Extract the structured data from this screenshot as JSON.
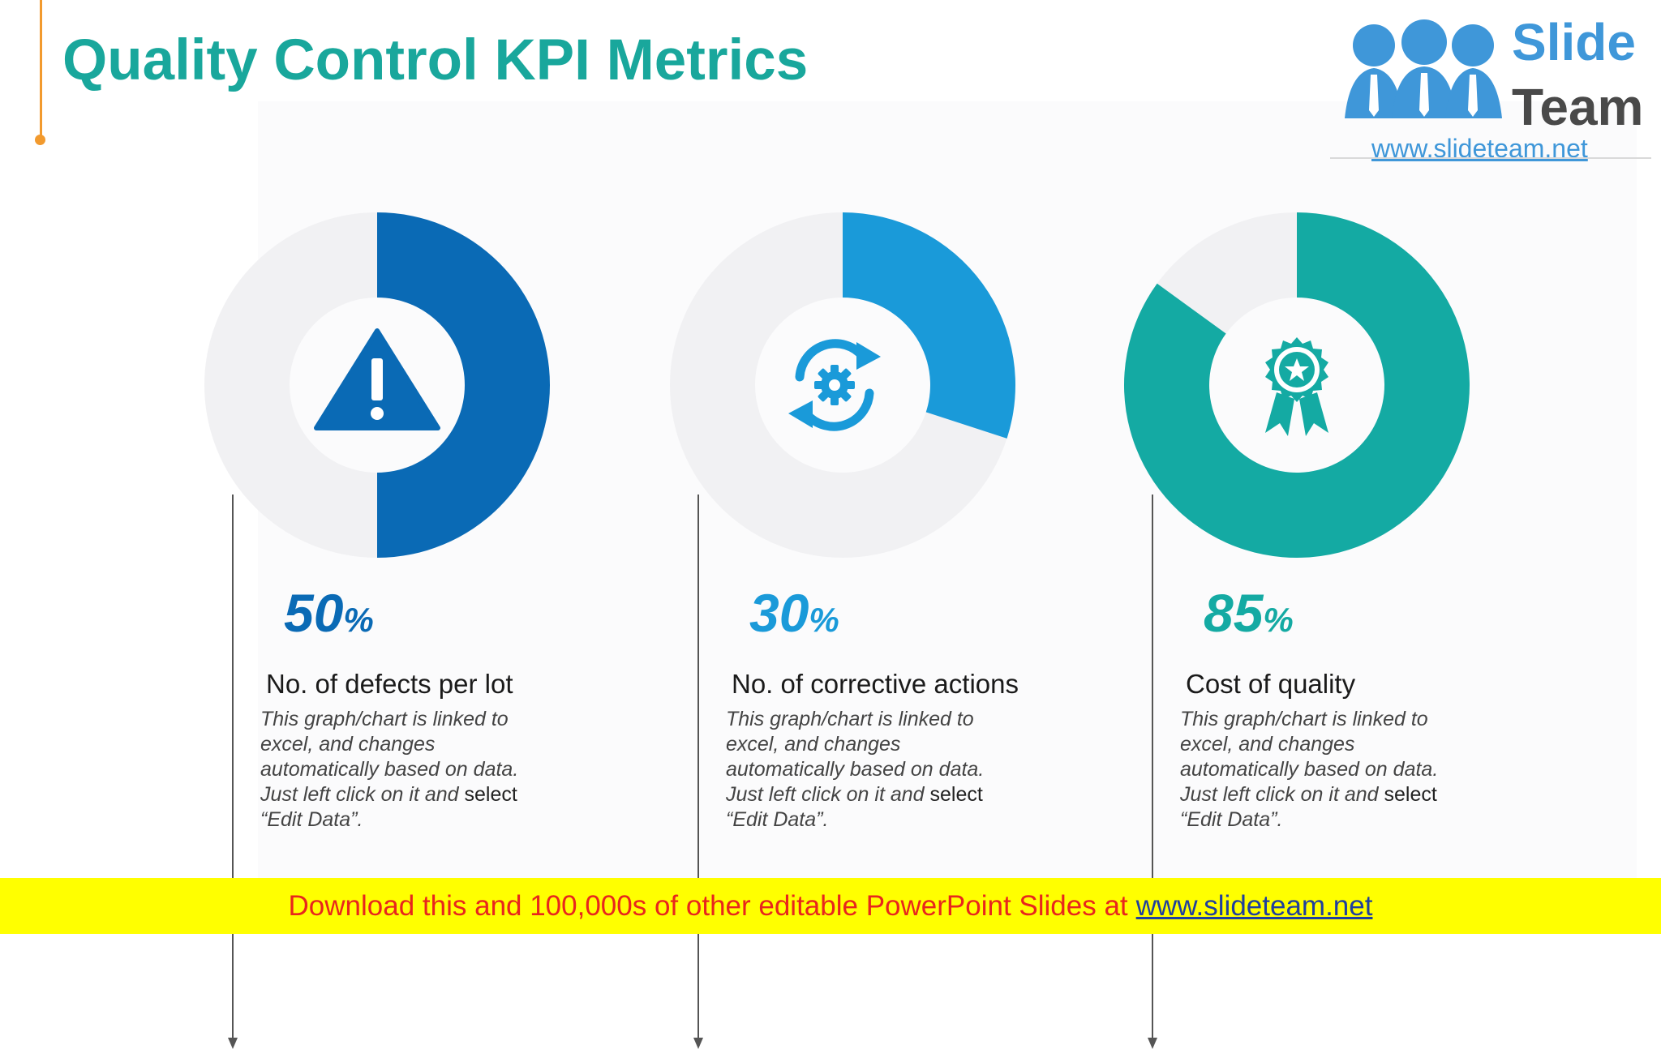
{
  "title": "Quality Control KPI Metrics",
  "logo": {
    "word1": "Slide",
    "word2": "Team",
    "url": "www.slideteam.net"
  },
  "colors": {
    "title": "#19a79c",
    "accent_line": "#f29a2e",
    "track": "#f1f1f3",
    "kpi1": "#0a6ab5",
    "kpi2": "#1a9ad9",
    "kpi3": "#14aaa3",
    "banner_bg": "#ffff00",
    "banner_text": "#e8261d"
  },
  "chart_data": [
    {
      "type": "pie",
      "variant": "donut",
      "values": [
        50,
        50
      ],
      "series": [
        {
          "values": [
            50
          ]
        }
      ],
      "color": "#0a6ab5",
      "icon": "warning-icon"
    },
    {
      "type": "pie",
      "variant": "donut",
      "values": [
        30,
        70
      ],
      "series": [
        {
          "values": [
            30
          ]
        }
      ],
      "color": "#1a9ad9",
      "icon": "refresh-gear-icon"
    },
    {
      "type": "pie",
      "variant": "donut",
      "values": [
        85,
        15
      ],
      "series": [
        {
          "values": [
            85
          ]
        }
      ],
      "color": "#14aaa3",
      "icon": "award-ribbon-icon"
    }
  ],
  "kpis": [
    {
      "value": "50",
      "unit": "%",
      "label": "No. of defects per lot",
      "desc_italic": "This graph/chart is linked to excel, and changes automatically based on data. Just left click on it and",
      "desc_plain": " select",
      "desc_end": "“Edit Data”."
    },
    {
      "value": "30",
      "unit": "%",
      "label": "No. of corrective actions",
      "desc_italic": "This graph/chart is linked to excel, and changes automatically based on data. Just left click on it and",
      "desc_plain": " select",
      "desc_end": "“Edit Data”."
    },
    {
      "value": "85",
      "unit": "%",
      "label": "Cost of quality",
      "desc_italic": "This graph/chart is linked to excel, and changes automatically based on data. Just left click on it and",
      "desc_plain": " select",
      "desc_end": "“Edit Data”."
    }
  ],
  "banner": {
    "text": "Download this and 100,000s of other editable PowerPoint Slides at",
    "link": "www.slideteam.net"
  }
}
